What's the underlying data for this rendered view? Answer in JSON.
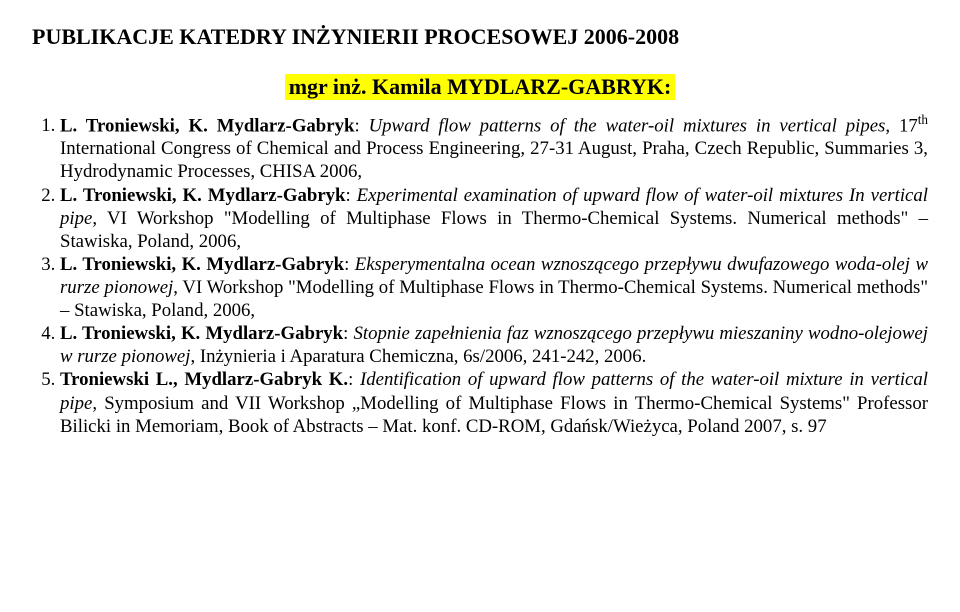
{
  "title": "PUBLIKACJE KATEDRY INŻYNIERII PROCESOWEJ 2006-2008",
  "subtitle": "mgr inż. Kamila MYDLARZ-GABRYK:",
  "subtitle_bg": "#ffff00",
  "title_fontsize": 22,
  "body_fontsize": 18.8,
  "text_color": "#000000",
  "bg_color": "#ffffff",
  "refs": [
    {
      "authors": "L. Troniewski, K. Mydlarz-Gabryk",
      "title_italic": "Upward flow patterns of the water-oil mixtures in vertical pipes",
      "venue_pre": ", 17",
      "venue_sup": "th",
      "venue_post": " International Congress of Chemical and Process Engineering, 27-31 August, Praha, Czech Republic, Summaries 3, Hydrodynamic Processes, CHISA 2006,"
    },
    {
      "authors": "L. Troniewski, K. Mydlarz-Gabryk",
      "title_italic": "Experimental examination of upward flow of water-oil mixtures In vertical pipe",
      "venue_post": ", VI Workshop \"Modelling of Multiphase Flows in Thermo-Chemical Systems. Numerical methods\" – Stawiska, Poland, 2006,"
    },
    {
      "authors": "L. Troniewski, K. Mydlarz-Gabryk",
      "title_italic": "Eksperymentalna ocean wznoszącego przepływu dwufazowego woda-olej w rurze pionowej",
      "venue_post": ", VI Workshop \"Modelling of Multiphase Flows in Thermo-Chemical Systems. Numerical methods\" – Stawiska, Poland, 2006,"
    },
    {
      "authors": "L. Troniewski, K. Mydlarz-Gabryk",
      "title_italic": "Stopnie zapełnienia faz wznoszącego przepływu mieszaniny wodno-olejowej w rurze pionowej",
      "venue_post": ", Inżynieria i Aparatura Chemiczna, 6s/2006, 241-242, 2006."
    },
    {
      "authors": "Troniewski L., Mydlarz-Gabryk K.",
      "title_italic": "Identification of upward flow patterns of the water-oil mixture in vertical pipe",
      "venue_post": ", Symposium and VII Workshop „Modelling of Multiphase Flows in Thermo-Chemical Systems\" Professor Bilicki in Memoriam, Book of Abstracts – Mat. konf. CD-ROM, Gdańsk/Wieżyca, Poland 2007, s. 97"
    }
  ]
}
